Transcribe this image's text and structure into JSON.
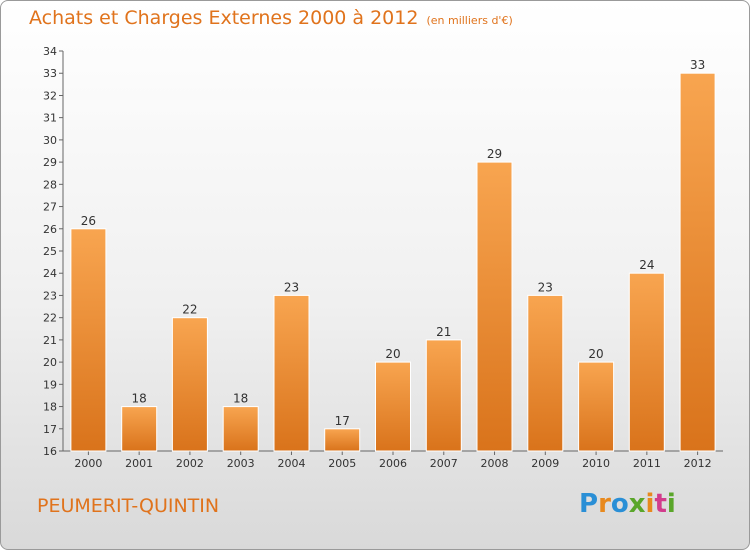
{
  "header": {
    "title": "Achats et Charges Externes 2000 à 2012",
    "unit": "(en milliers d'€)"
  },
  "footer": {
    "place": "PEUMERIT-QUINTIN",
    "logo": [
      "P",
      "r",
      "o",
      "x",
      "i",
      "t",
      "i"
    ],
    "logo_colors": [
      "#2a8fd6",
      "#e8891d",
      "#2a8fd6",
      "#5aa62a",
      "#e8891d",
      "#d23c8c",
      "#5aa62a"
    ]
  },
  "colors": {
    "bar_top": "#f8a550",
    "bar_bottom": "#d9731b",
    "title": "#e0731c"
  },
  "chart_data": {
    "type": "bar",
    "categories": [
      "2000",
      "2001",
      "2002",
      "2003",
      "2004",
      "2005",
      "2006",
      "2007",
      "2008",
      "2009",
      "2010",
      "2011",
      "2012"
    ],
    "values": [
      26,
      18,
      22,
      18,
      23,
      17,
      20,
      21,
      29,
      23,
      20,
      24,
      33
    ],
    "title": "Achats et Charges Externes 2000 à 2012",
    "ylim": [
      16,
      34
    ],
    "yticks": [
      16,
      17,
      18,
      19,
      20,
      21,
      22,
      23,
      24,
      25,
      26,
      27,
      28,
      29,
      30,
      31,
      32,
      33,
      34
    ],
    "grid": false,
    "data_labels": true
  }
}
